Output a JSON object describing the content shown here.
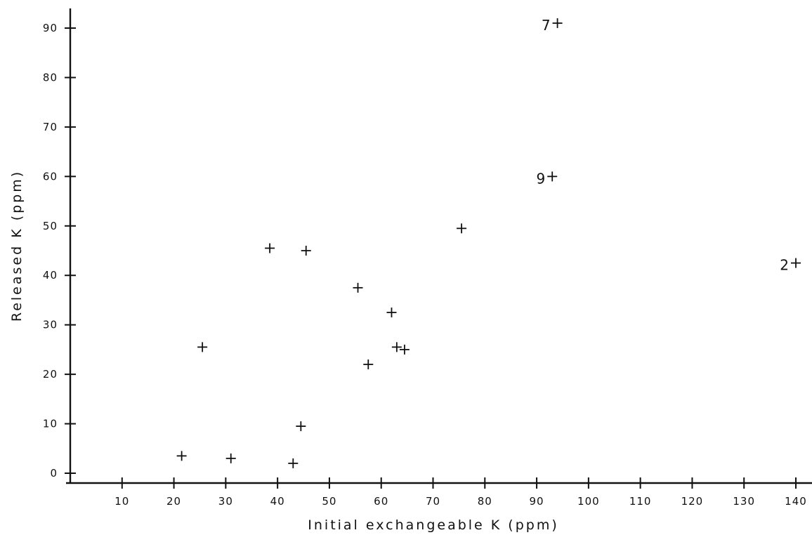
{
  "chart_data": {
    "type": "scatter",
    "title": "",
    "xlabel": "Initial exchangeable K (ppm)",
    "ylabel": "Released K (ppm)",
    "xlim": [
      0,
      142
    ],
    "ylim": [
      -2,
      94
    ],
    "xticks": [
      10,
      20,
      30,
      40,
      50,
      60,
      70,
      80,
      90,
      100,
      110,
      120,
      130,
      140
    ],
    "yticks": [
      0,
      10,
      20,
      30,
      40,
      50,
      60,
      70,
      80,
      90
    ],
    "xtick_labels": [
      "10",
      "20",
      "30",
      "40",
      "50",
      "60",
      "70",
      "80",
      "90",
      "100",
      "110",
      "120",
      "130",
      "140"
    ],
    "ytick_labels": [
      "0",
      "10",
      "20",
      "30",
      "40",
      "50",
      "60",
      "70",
      "80",
      "90"
    ],
    "grid": false,
    "marker": "+",
    "series": [
      {
        "points": [
          {
            "x": 21.5,
            "y": 3.5,
            "label": ""
          },
          {
            "x": 25.5,
            "y": 25.5,
            "label": ""
          },
          {
            "x": 31,
            "y": 3,
            "label": ""
          },
          {
            "x": 38.5,
            "y": 45.5,
            "label": ""
          },
          {
            "x": 43,
            "y": 2,
            "label": ""
          },
          {
            "x": 44.5,
            "y": 9.5,
            "label": ""
          },
          {
            "x": 45.5,
            "y": 45,
            "label": ""
          },
          {
            "x": 55.5,
            "y": 37.5,
            "label": ""
          },
          {
            "x": 57.5,
            "y": 22,
            "label": ""
          },
          {
            "x": 62,
            "y": 32.5,
            "label": ""
          },
          {
            "x": 63,
            "y": 25.5,
            "label": ""
          },
          {
            "x": 64.5,
            "y": 25,
            "label": ""
          },
          {
            "x": 75.5,
            "y": 49.5,
            "label": ""
          },
          {
            "x": 93,
            "y": 60,
            "label": "9"
          },
          {
            "x": 94,
            "y": 91,
            "label": "7"
          },
          {
            "x": 140,
            "y": 42.5,
            "label": "2"
          }
        ]
      }
    ]
  }
}
